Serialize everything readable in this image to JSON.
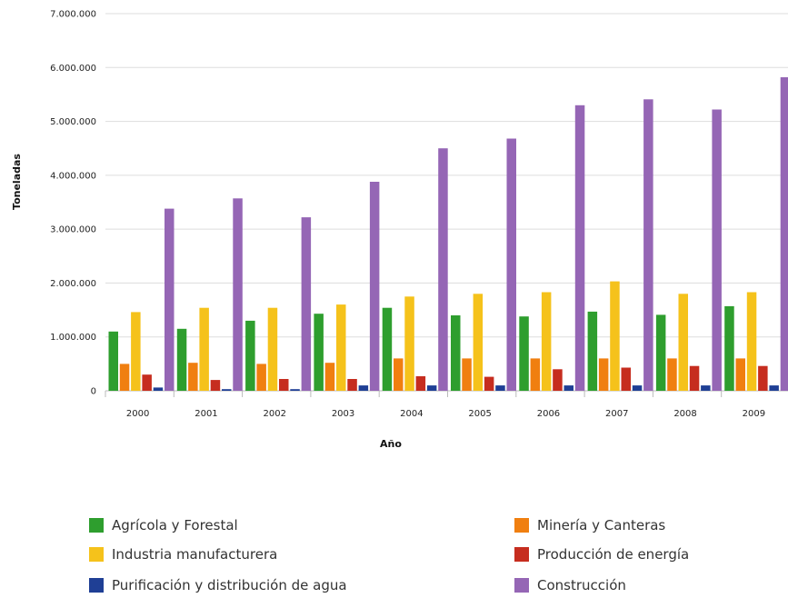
{
  "chart_data": {
    "type": "bar",
    "xlabel": "Año",
    "ylabel": "Toneladas",
    "ylim": [
      0,
      7000000
    ],
    "yticks": [
      "0",
      "1.000.000",
      "2.000.000",
      "3.000.000",
      "4.000.000",
      "5.000.000",
      "6.000.000",
      "7.000.000"
    ],
    "ytick_values": [
      0,
      1000000,
      2000000,
      3000000,
      4000000,
      5000000,
      6000000,
      7000000
    ],
    "grid": true,
    "legend_position": "bottom",
    "categories": [
      "2000",
      "2001",
      "2002",
      "2003",
      "2004",
      "2005",
      "2006",
      "2007",
      "2008",
      "2009"
    ],
    "series": [
      {
        "name": "Agrícola y Forestal",
        "color": "#2e9e2e",
        "values": [
          1100000,
          1150000,
          1300000,
          1430000,
          1540000,
          1400000,
          1380000,
          1470000,
          1410000,
          1570000
        ]
      },
      {
        "name": "Minería y Canteras",
        "color": "#f07f10",
        "values": [
          500000,
          520000,
          500000,
          520000,
          600000,
          600000,
          600000,
          600000,
          600000,
          600000
        ]
      },
      {
        "name": "Industria manufacturera",
        "color": "#f5c21b",
        "values": [
          1460000,
          1540000,
          1540000,
          1600000,
          1750000,
          1800000,
          1830000,
          2030000,
          1800000,
          1830000
        ]
      },
      {
        "name": "Producción de energía",
        "color": "#c62d1f",
        "values": [
          300000,
          200000,
          220000,
          220000,
          270000,
          260000,
          400000,
          430000,
          460000,
          460000
        ]
      },
      {
        "name": "Purificación y distribución de agua",
        "color": "#1f3f95",
        "values": [
          60000,
          30000,
          30000,
          100000,
          100000,
          100000,
          100000,
          100000,
          100000,
          100000
        ]
      },
      {
        "name": "Construcción",
        "color": "#9566b5",
        "values": [
          3380000,
          3570000,
          3220000,
          3880000,
          4500000,
          4680000,
          5300000,
          5410000,
          5220000,
          5820000
        ]
      }
    ]
  }
}
